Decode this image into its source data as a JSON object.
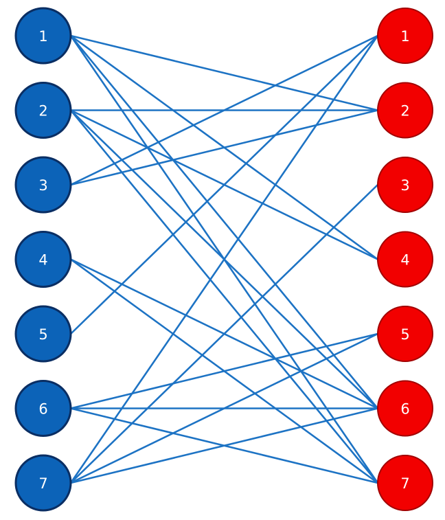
{
  "colors": {
    "left_fill": "#0c63b8",
    "left_stroke": "#0a2e63",
    "right_fill": "#f20000",
    "right_stroke": "#a20000",
    "edge": "#1d73c4"
  },
  "left_nodes": [
    "1",
    "2",
    "3",
    "4",
    "5",
    "6",
    "7"
  ],
  "right_nodes": [
    "1",
    "2",
    "3",
    "4",
    "5",
    "6",
    "7"
  ],
  "edges": [
    [
      "1",
      "2"
    ],
    [
      "1",
      "4"
    ],
    [
      "1",
      "6"
    ],
    [
      "1",
      "7"
    ],
    [
      "2",
      "2"
    ],
    [
      "2",
      "4"
    ],
    [
      "2",
      "6"
    ],
    [
      "2",
      "7"
    ],
    [
      "3",
      "1"
    ],
    [
      "3",
      "2"
    ],
    [
      "4",
      "6"
    ],
    [
      "4",
      "7"
    ],
    [
      "5",
      "1"
    ],
    [
      "6",
      "5"
    ],
    [
      "6",
      "6"
    ],
    [
      "6",
      "7"
    ],
    [
      "7",
      "1"
    ],
    [
      "7",
      "3"
    ],
    [
      "7",
      "5"
    ],
    [
      "7",
      "6"
    ]
  ]
}
